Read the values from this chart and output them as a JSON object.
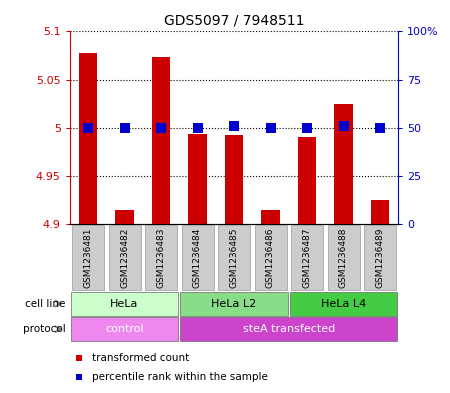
{
  "title": "GDS5097 / 7948511",
  "samples": [
    "GSM1236481",
    "GSM1236482",
    "GSM1236483",
    "GSM1236484",
    "GSM1236485",
    "GSM1236486",
    "GSM1236487",
    "GSM1236488",
    "GSM1236489"
  ],
  "red_values": [
    5.078,
    4.915,
    5.073,
    4.993,
    4.992,
    4.915,
    4.99,
    5.025,
    4.925
  ],
  "blue_values": [
    50,
    50,
    50,
    50,
    51,
    50,
    50,
    51,
    50
  ],
  "ylim_left": [
    4.9,
    5.1
  ],
  "ylim_right": [
    0,
    100
  ],
  "yticks_left": [
    4.9,
    4.95,
    5.0,
    5.05,
    5.1
  ],
  "yticks_right": [
    0,
    25,
    50,
    75,
    100
  ],
  "ytick_labels_left": [
    "4.9",
    "4.95",
    "5",
    "5.05",
    "5.1"
  ],
  "ytick_labels_right": [
    "0",
    "25",
    "50",
    "75",
    "100%"
  ],
  "cell_line_groups": [
    {
      "label": "HeLa",
      "start": 0,
      "end": 3,
      "color": "#ccffcc"
    },
    {
      "label": "HeLa L2",
      "start": 3,
      "end": 6,
      "color": "#88dd88"
    },
    {
      "label": "HeLa L4",
      "start": 6,
      "end": 9,
      "color": "#44cc44"
    }
  ],
  "protocol_groups": [
    {
      "label": "control",
      "start": 0,
      "end": 3,
      "color": "#ee88ee"
    },
    {
      "label": "steA transfected",
      "start": 3,
      "end": 9,
      "color": "#cc44cc"
    }
  ],
  "red_color": "#cc0000",
  "blue_color": "#0000cc",
  "bar_width": 0.5,
  "marker_size": 7,
  "bg_color": "#ffffff",
  "sample_box_color": "#cccccc",
  "legend_items": [
    {
      "color": "#cc0000",
      "label": "transformed count"
    },
    {
      "color": "#0000cc",
      "label": "percentile rank within the sample"
    }
  ]
}
